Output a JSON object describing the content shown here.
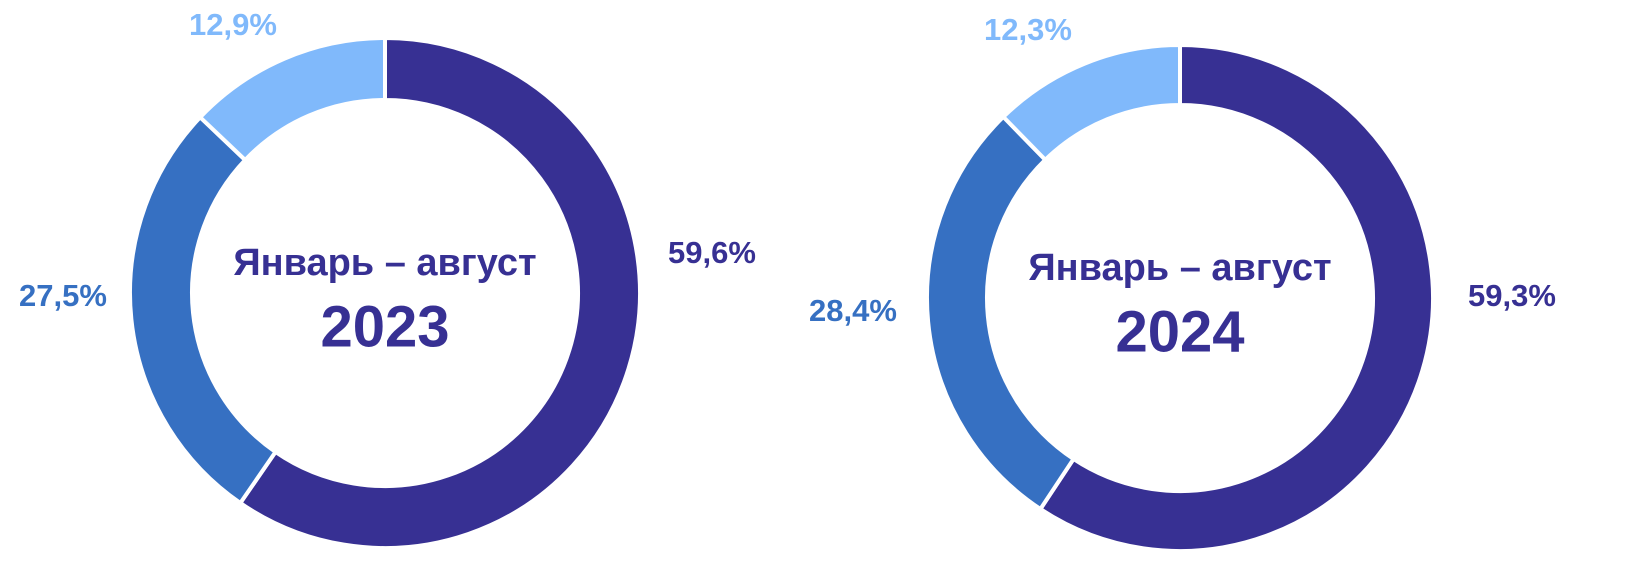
{
  "chart_data": [
    {
      "type": "donut",
      "title": "Январь – август",
      "subtitle": "2023",
      "values": [
        59.6,
        27.5,
        12.9
      ],
      "value_labels": [
        "59,6%",
        "27,5%",
        "12,9%"
      ],
      "colors": [
        "#373093",
        "#3670c2",
        "#80b9fb"
      ]
    },
    {
      "type": "donut",
      "title": "Январь – август",
      "subtitle": "2024",
      "values": [
        59.3,
        28.4,
        12.3
      ],
      "value_labels": [
        "59,3%",
        "28,4%",
        "12,3%"
      ],
      "colors": [
        "#373093",
        "#3670c2",
        "#80b9fb"
      ]
    }
  ]
}
